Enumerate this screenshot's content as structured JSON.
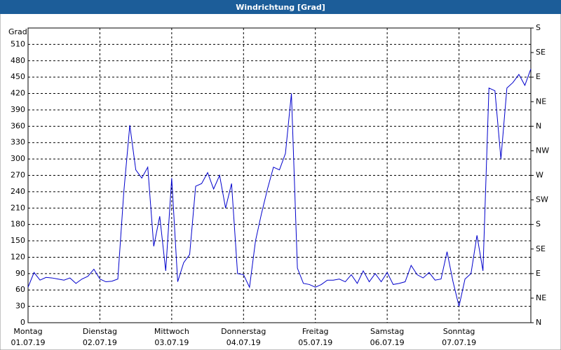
{
  "chart_data": {
    "type": "line",
    "title": "Windrichtung [Grad]",
    "y_label": "Grad",
    "xlim": [
      0,
      84
    ],
    "xticks": [
      {
        "value": 0,
        "label": "Montag"
      },
      {
        "value": 12,
        "label": "Dienstag"
      },
      {
        "value": 24,
        "label": "Mittwoch"
      },
      {
        "value": 36,
        "label": "Donnerstag"
      },
      {
        "value": 48,
        "label": "Freitag"
      },
      {
        "value": 60,
        "label": "Samstag"
      },
      {
        "value": 72,
        "label": "Sonntag"
      }
    ],
    "xtick_dates": [
      "01.07.19",
      "02.07.19",
      "03.07.19",
      "04.07.19",
      "05.07.19",
      "06.07.19",
      "07.07.19"
    ],
    "ylim": [
      0,
      540
    ],
    "yticks": [
      0,
      30,
      60,
      90,
      120,
      150,
      180,
      210,
      240,
      270,
      300,
      330,
      360,
      390,
      420,
      450,
      480,
      510
    ],
    "y2lim": [
      0,
      540
    ],
    "y2ticks": [
      {
        "value": 0,
        "label": "N"
      },
      {
        "value": 45,
        "label": "NE"
      },
      {
        "value": 90,
        "label": "E"
      },
      {
        "value": 135,
        "label": "SE"
      },
      {
        "value": 180,
        "label": "S"
      },
      {
        "value": 225,
        "label": "SW"
      },
      {
        "value": 270,
        "label": "W"
      },
      {
        "value": 315,
        "label": "NW"
      },
      {
        "value": 360,
        "label": "N"
      },
      {
        "value": 405,
        "label": "NE"
      },
      {
        "value": 450,
        "label": "E"
      },
      {
        "value": 495,
        "label": "SE"
      },
      {
        "value": 540,
        "label": "S"
      }
    ],
    "grid": true,
    "series": [
      {
        "color": "#0000cc",
        "values": [
          65,
          92,
          78,
          83,
          82,
          80,
          78,
          82,
          72,
          80,
          85,
          98,
          80,
          75,
          76,
          80,
          240,
          362,
          280,
          265,
          285,
          140,
          195,
          95,
          265,
          75,
          110,
          125,
          250,
          255,
          275,
          245,
          270,
          210,
          255,
          90,
          88,
          65,
          150,
          200,
          245,
          285,
          280,
          310,
          420,
          100,
          72,
          70,
          65,
          70,
          78,
          78,
          80,
          75,
          88,
          72,
          95,
          75,
          90,
          75,
          92,
          70,
          72,
          75,
          105,
          88,
          82,
          92,
          78,
          80,
          130,
          75,
          30,
          80,
          90,
          160,
          95,
          430,
          425,
          300,
          430,
          440,
          455,
          435,
          465
        ]
      }
    ]
  }
}
